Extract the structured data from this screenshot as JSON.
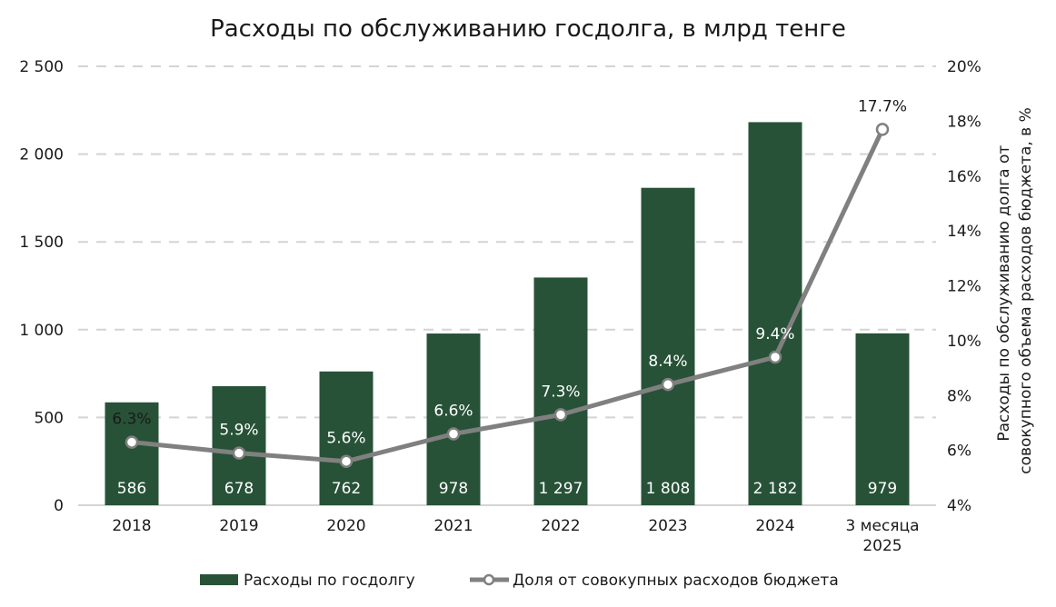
{
  "chart_data": {
    "type": "bar",
    "title": "Расходы по обслуживанию госдолга, в млрд тенге",
    "categories": [
      "2018",
      "2019",
      "2020",
      "2021",
      "2022",
      "2023",
      "2024",
      "3 месяца 2025"
    ],
    "categories_lines": [
      [
        "2018"
      ],
      [
        "2019"
      ],
      [
        "2020"
      ],
      [
        "2021"
      ],
      [
        "2022"
      ],
      [
        "2023"
      ],
      [
        "2024"
      ],
      [
        "3 месяца",
        "2025"
      ]
    ],
    "series": [
      {
        "name": "Расходы по госдолгу",
        "type": "bar",
        "axis": "left",
        "color": "#275237",
        "values": [
          586,
          678,
          762,
          978,
          1297,
          1808,
          2182,
          979
        ],
        "labels": [
          "586",
          "678",
          "762",
          "978",
          "1 297",
          "1 808",
          "2 182",
          "979"
        ]
      },
      {
        "name": "Доля от совокупных расходов бюджета",
        "type": "line",
        "axis": "right",
        "color": "#808080",
        "values": [
          6.3,
          5.9,
          5.6,
          6.6,
          7.3,
          8.4,
          9.4,
          17.7
        ],
        "labels": [
          "6.3%",
          "5.9%",
          "5.6%",
          "6.6%",
          "7.3%",
          "8.4%",
          "9.4%",
          "17.7%"
        ]
      }
    ],
    "ylim": [
      0,
      2500
    ],
    "yticks": [
      0,
      500,
      1000,
      1500,
      2000,
      2500
    ],
    "ytick_labels": [
      "0",
      "500",
      "1 000",
      "1 500",
      "2 000",
      "2 500"
    ],
    "y2lim": [
      4,
      20
    ],
    "y2ticks": [
      4,
      6,
      8,
      10,
      12,
      14,
      16,
      18,
      20
    ],
    "y2tick_labels": [
      "4%",
      "6%",
      "8%",
      "10%",
      "12%",
      "14%",
      "16%",
      "18%",
      "20%"
    ],
    "ylabel2_lines": [
      "Расходы по обслуживанию долга от",
      "совокупного объема  расходов бюджета, в %"
    ],
    "grid": true,
    "legend_position": "bottom"
  }
}
